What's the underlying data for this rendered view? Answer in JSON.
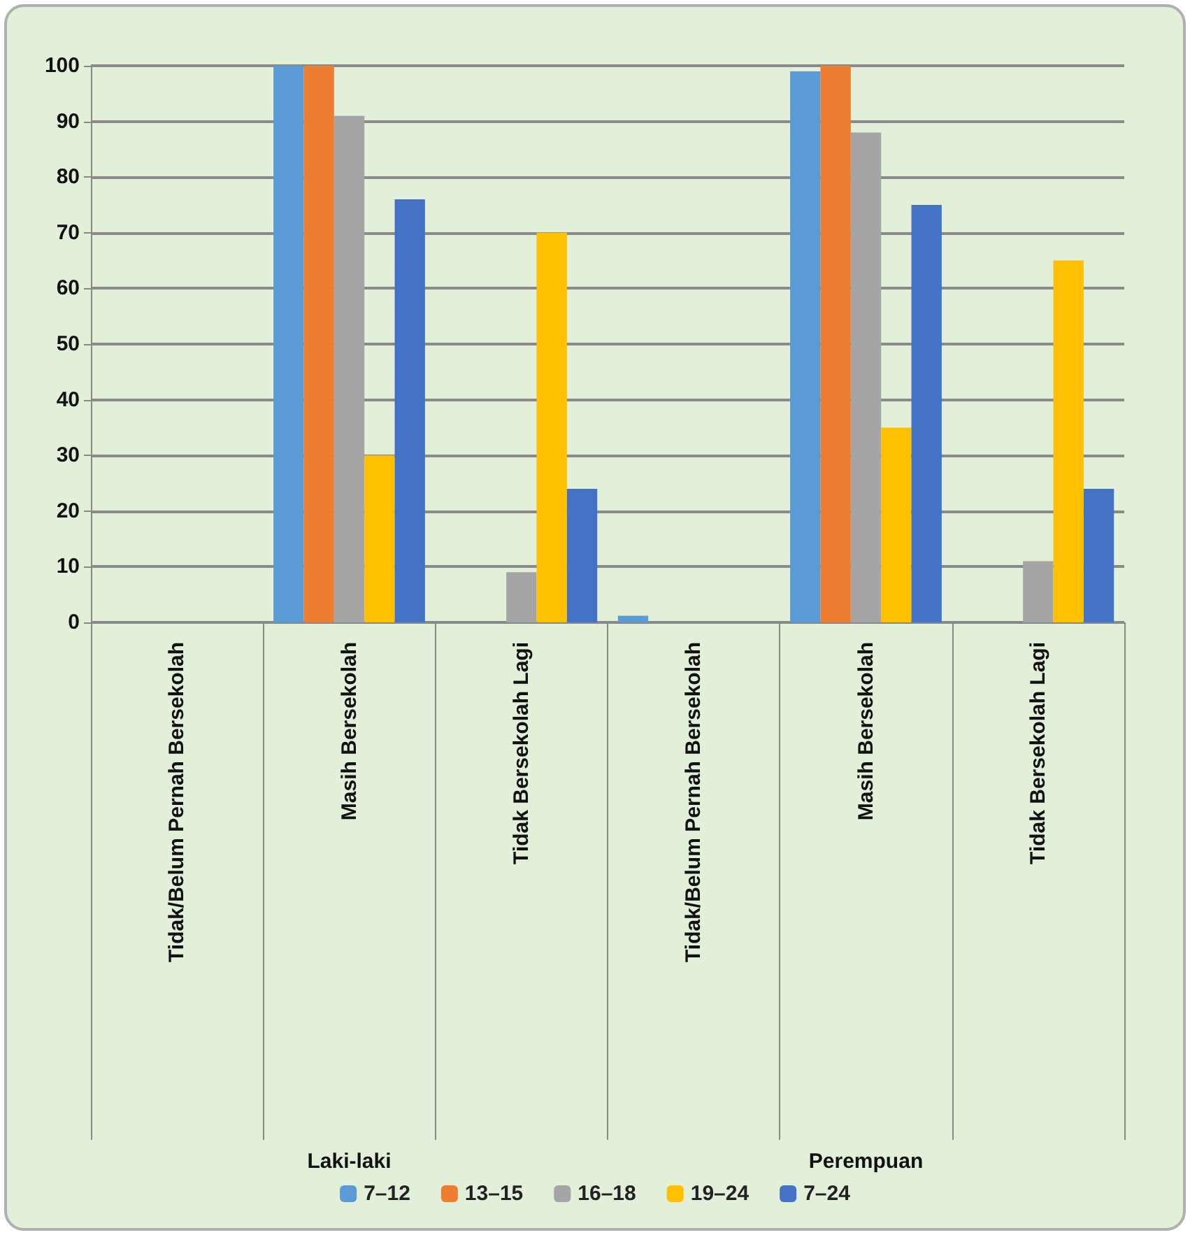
{
  "chart_data": {
    "type": "bar",
    "categories": [
      "Tidak/Belum Pernah Bersekolah",
      "Masih Bersekolah",
      "Tidak Bersekolah Lagi",
      "Tidak/Belum Pernah Bersekolah",
      "Masih Bersekolah",
      "Tidak Bersekolah Lagi"
    ],
    "series": [
      {
        "name": "7–12",
        "color": "#5b9bd5",
        "values": [
          0,
          100,
          0,
          1.2,
          99,
          0
        ]
      },
      {
        "name": "13–15",
        "color": "#ed7d31",
        "values": [
          0,
          100,
          0,
          0,
          100,
          0
        ]
      },
      {
        "name": "16–18",
        "color": "#a5a5a5",
        "values": [
          0,
          91,
          9,
          0,
          88,
          11
        ]
      },
      {
        "name": "19–24",
        "color": "#ffc000",
        "values": [
          0,
          30,
          70,
          0,
          35,
          65
        ]
      },
      {
        "name": "7–24",
        "color": "#4472c4",
        "values": [
          0,
          76,
          24,
          0,
          75,
          24
        ]
      }
    ],
    "annotations": [
      "Laki-laki",
      "Perempuan"
    ],
    "ylim": [
      0,
      100
    ],
    "yticks": [
      0,
      10,
      20,
      30,
      40,
      50,
      60,
      70,
      80,
      90,
      100
    ],
    "grid": "y",
    "legend": "bottom"
  }
}
